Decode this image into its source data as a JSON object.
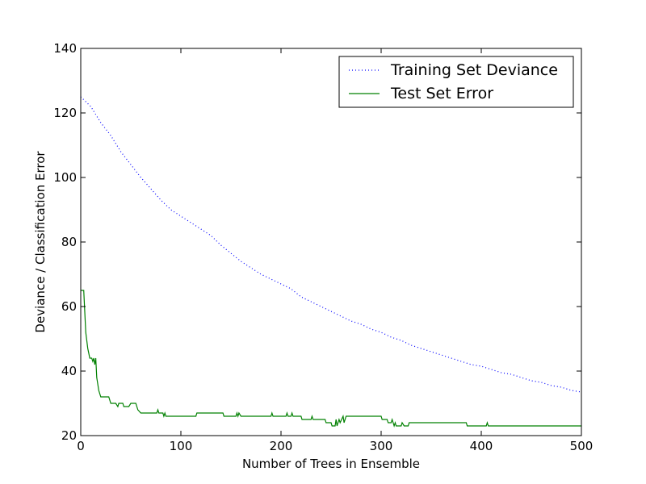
{
  "chart_data": {
    "type": "line",
    "title": "",
    "xlabel": "Number of Trees in Ensemble",
    "ylabel": "Deviance / Classification Error",
    "xlim": [
      0,
      500
    ],
    "ylim": [
      20,
      140
    ],
    "xticks": [
      "0",
      "100",
      "200",
      "300",
      "400",
      "500"
    ],
    "yticks": [
      "20",
      "40",
      "60",
      "80",
      "100",
      "120",
      "140"
    ],
    "grid": false,
    "legend_position": "top-right",
    "series": [
      {
        "name": "Training Set Deviance",
        "style": "dotted",
        "color": "#0000ff",
        "points": [
          [
            0,
            125
          ],
          [
            10,
            122
          ],
          [
            20,
            117
          ],
          [
            30,
            113
          ],
          [
            40,
            108
          ],
          [
            50,
            104
          ],
          [
            60,
            100
          ],
          [
            70,
            96.5
          ],
          [
            80,
            93
          ],
          [
            90,
            90
          ],
          [
            100,
            88
          ],
          [
            110,
            86
          ],
          [
            120,
            84
          ],
          [
            130,
            82
          ],
          [
            140,
            79
          ],
          [
            150,
            76.5
          ],
          [
            160,
            74
          ],
          [
            170,
            72
          ],
          [
            180,
            70
          ],
          [
            190,
            68.5
          ],
          [
            200,
            67
          ],
          [
            210,
            65.5
          ],
          [
            220,
            63
          ],
          [
            230,
            61.5
          ],
          [
            240,
            60
          ],
          [
            250,
            58.5
          ],
          [
            260,
            57
          ],
          [
            270,
            55.5
          ],
          [
            280,
            54.5
          ],
          [
            290,
            53
          ],
          [
            300,
            52
          ],
          [
            310,
            50.5
          ],
          [
            320,
            49.5
          ],
          [
            330,
            48
          ],
          [
            340,
            47
          ],
          [
            350,
            46
          ],
          [
            360,
            45
          ],
          [
            370,
            44
          ],
          [
            380,
            43
          ],
          [
            390,
            42
          ],
          [
            400,
            41.5
          ],
          [
            410,
            40.5
          ],
          [
            420,
            39.5
          ],
          [
            430,
            39
          ],
          [
            440,
            38
          ],
          [
            450,
            37
          ],
          [
            460,
            36.5
          ],
          [
            470,
            35.5
          ],
          [
            480,
            35
          ],
          [
            490,
            34
          ],
          [
            500,
            33.5
          ]
        ]
      },
      {
        "name": "Test Set Error",
        "style": "solid",
        "color": "#008000",
        "points": [
          [
            0,
            65
          ],
          [
            3,
            65
          ],
          [
            5,
            52
          ],
          [
            7,
            47
          ],
          [
            9,
            44
          ],
          [
            11,
            44
          ],
          [
            12,
            43
          ],
          [
            13,
            44
          ],
          [
            14,
            42
          ],
          [
            15,
            44
          ],
          [
            16,
            38
          ],
          [
            18,
            34
          ],
          [
            20,
            32
          ],
          [
            28,
            32
          ],
          [
            30,
            30
          ],
          [
            35,
            30
          ],
          [
            37,
            29
          ],
          [
            38,
            30
          ],
          [
            42,
            30
          ],
          [
            43,
            29
          ],
          [
            48,
            29
          ],
          [
            50,
            30
          ],
          [
            55,
            30
          ],
          [
            57,
            28
          ],
          [
            60,
            27
          ],
          [
            76,
            27
          ],
          [
            77,
            28
          ],
          [
            78,
            27
          ],
          [
            82,
            27
          ],
          [
            83,
            26
          ],
          [
            84,
            27
          ],
          [
            85,
            26
          ],
          [
            115,
            26
          ],
          [
            116,
            27
          ],
          [
            142,
            27
          ],
          [
            143,
            26
          ],
          [
            155,
            26
          ],
          [
            156,
            27
          ],
          [
            157,
            26
          ],
          [
            158,
            27
          ],
          [
            160,
            26
          ],
          [
            190,
            26
          ],
          [
            191,
            27
          ],
          [
            192,
            26
          ],
          [
            205,
            26
          ],
          [
            206,
            27
          ],
          [
            207,
            26
          ],
          [
            210,
            26
          ],
          [
            211,
            27
          ],
          [
            212,
            26
          ],
          [
            220,
            26
          ],
          [
            221,
            25
          ],
          [
            230,
            25
          ],
          [
            231,
            26
          ],
          [
            232,
            25
          ],
          [
            244,
            25
          ],
          [
            245,
            24
          ],
          [
            250,
            24
          ],
          [
            251,
            23
          ],
          [
            254,
            23
          ],
          [
            255,
            25
          ],
          [
            256,
            23
          ],
          [
            258,
            25
          ],
          [
            259,
            24
          ],
          [
            262,
            26
          ],
          [
            263,
            24
          ],
          [
            265,
            26
          ],
          [
            300,
            26
          ],
          [
            301,
            25
          ],
          [
            306,
            25
          ],
          [
            307,
            24
          ],
          [
            310,
            24
          ],
          [
            311,
            25
          ],
          [
            312,
            24
          ],
          [
            313,
            23
          ],
          [
            314,
            24
          ],
          [
            315,
            23
          ],
          [
            320,
            23
          ],
          [
            321,
            24
          ],
          [
            323,
            23
          ],
          [
            327,
            23
          ],
          [
            328,
            24
          ],
          [
            385,
            24
          ],
          [
            386,
            23
          ],
          [
            405,
            23
          ],
          [
            406,
            24
          ],
          [
            407,
            23
          ],
          [
            500,
            23
          ]
        ]
      }
    ]
  }
}
